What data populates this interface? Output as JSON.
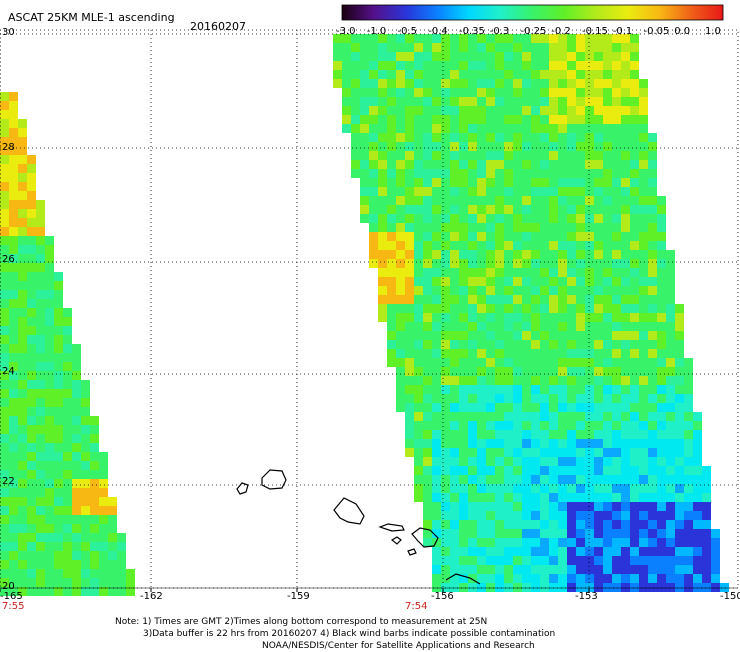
{
  "header": {
    "title": "ASCAT 25KM MLE-1 ascending",
    "date": "20160207"
  },
  "colorbar": {
    "labels": [
      "-3.0",
      "-1.0",
      "-0.5",
      "-0.4",
      "-0.35",
      "-0.3",
      "-0.25",
      "-0.2",
      "-0.15",
      "-0.1",
      "-0.05",
      "0.0",
      "1.0"
    ],
    "colors": [
      "#1a0010",
      "#55108a",
      "#2a34d8",
      "#0a80ff",
      "#00d8ff",
      "#20f0c8",
      "#38f26a",
      "#60f028",
      "#b2ea1a",
      "#eaec10",
      "#f8b814",
      "#f06018",
      "#e81818"
    ]
  },
  "axes": {
    "lon_labels": [
      "-165",
      "-162",
      "-159",
      "-156",
      "-153",
      "-150"
    ],
    "lat_labels": [
      "30",
      "28",
      "26",
      "24",
      "22",
      "20"
    ],
    "lon_range": [
      -165,
      -150
    ],
    "lat_range": [
      20,
      30
    ],
    "grid": true
  },
  "pass_times": [
    "7:55",
    "7:54"
  ],
  "notes": [
    "Note: 1) Times are GMT 2)Times along bottom correspond to measurement at 25N",
    "3)Data buffer is 22 hrs from 20160207 4) Black wind barbs indicate possible contamination",
    "NOAA/NESDIS/Center for Satellite Applications and Research"
  ]
}
